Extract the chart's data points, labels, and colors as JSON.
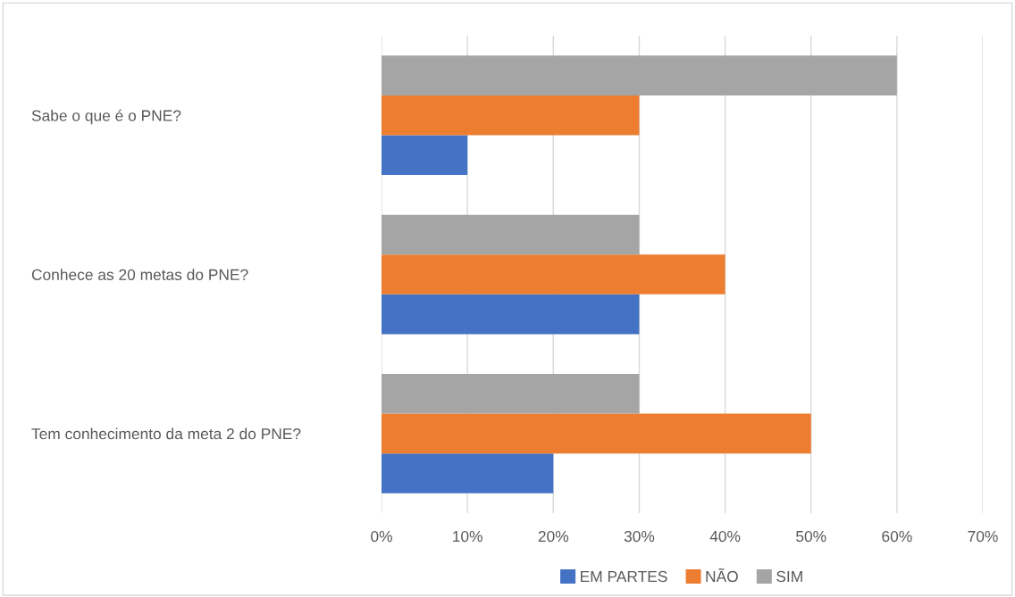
{
  "chart_data": {
    "type": "bar",
    "orientation": "horizontal",
    "categories": [
      "Sabe o que é o PNE?",
      "Conhece as 20 metas do PNE?",
      "Tem conhecimento da meta 2 do PNE?"
    ],
    "series": [
      {
        "name": "EM PARTES",
        "color": "#4472c4",
        "values": [
          10,
          30,
          20
        ]
      },
      {
        "name": "NÃO",
        "color": "#ed7d31",
        "values": [
          30,
          40,
          50
        ]
      },
      {
        "name": "SIM",
        "color": "#a5a5a5",
        "values": [
          60,
          30,
          30
        ]
      }
    ],
    "xlim": [
      0,
      70
    ],
    "xticks": [
      {
        "value": 0,
        "label": "0%"
      },
      {
        "value": 10,
        "label": "10%"
      },
      {
        "value": 20,
        "label": "20%"
      },
      {
        "value": 30,
        "label": "30%"
      },
      {
        "value": 40,
        "label": "40%"
      },
      {
        "value": 50,
        "label": "50%"
      },
      {
        "value": 60,
        "label": "60%"
      },
      {
        "value": 70,
        "label": "70%"
      }
    ],
    "grid": "x",
    "legend": "bottom"
  }
}
